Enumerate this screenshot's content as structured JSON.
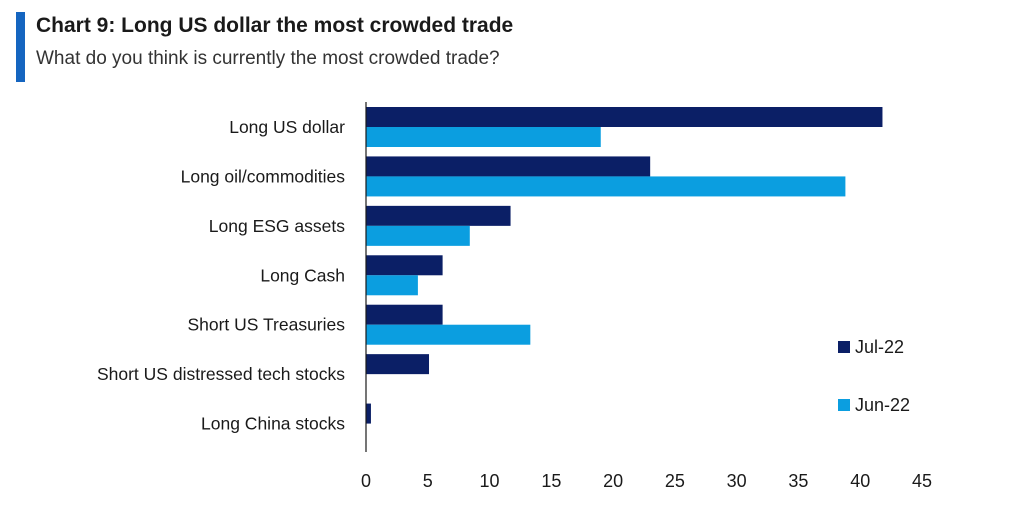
{
  "header": {
    "title": "Chart 9: Long US dollar the most crowded trade",
    "subtitle": "What do you think is currently the most crowded trade?"
  },
  "chart_data": {
    "type": "bar",
    "orientation": "horizontal",
    "title": "Chart 9: Long US dollar the most crowded trade",
    "subtitle": "What do you think is currently the most crowded trade?",
    "xlabel": "",
    "ylabel": "",
    "categories": [
      "Long US dollar",
      "Long oil/commodities",
      "Long ESG assets",
      "Long Cash",
      "Short US Treasuries",
      "Short US distressed tech stocks",
      "Long China stocks"
    ],
    "series": [
      {
        "name": "Jul-22",
        "color": "#0b1f66",
        "values": [
          41.8,
          23,
          11.7,
          6.2,
          6.2,
          5.1,
          0.4
        ]
      },
      {
        "name": "Jun-22",
        "color": "#0b9ee0",
        "values": [
          19,
          38.8,
          8.4,
          4.2,
          13.3,
          0,
          0
        ]
      }
    ],
    "xlim": [
      0,
      45
    ],
    "xticks": [
      "0",
      "5",
      "10",
      "15",
      "20",
      "25",
      "30",
      "35",
      "40",
      "45"
    ],
    "grid": false,
    "legend": "right"
  }
}
